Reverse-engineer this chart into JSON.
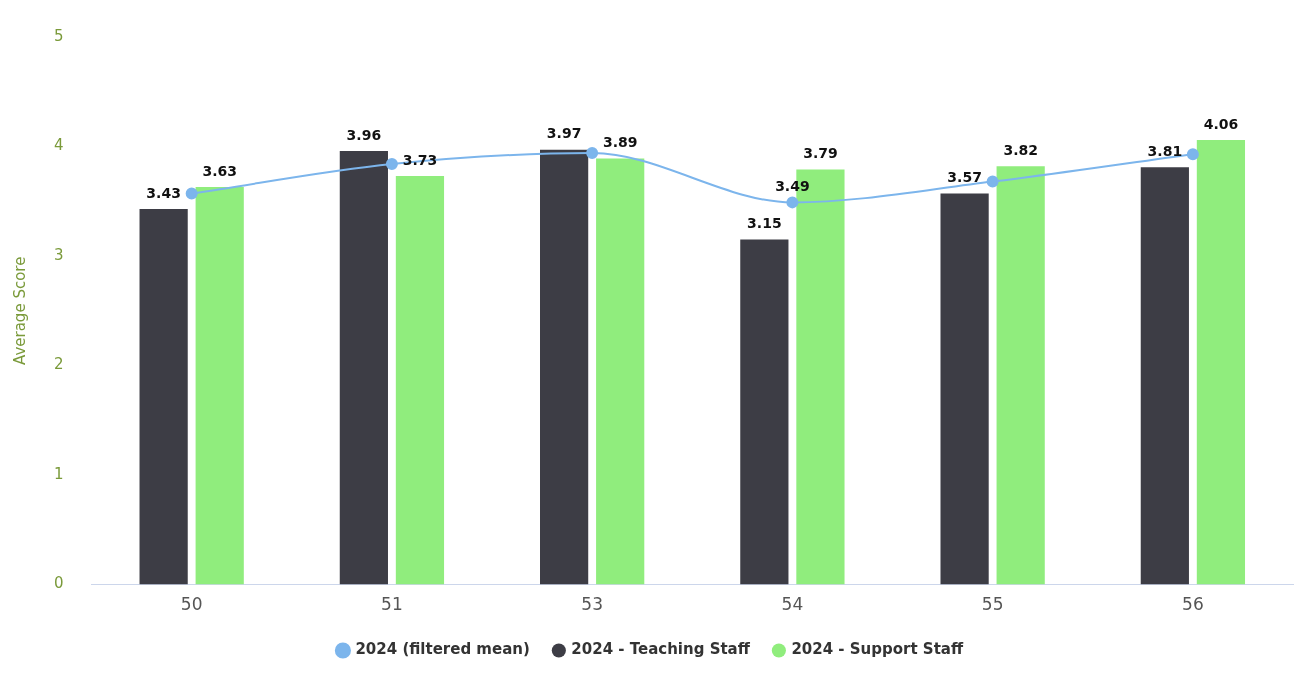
{
  "chart_data": {
    "type": "bar",
    "ylabel": "Average Score",
    "categories": [
      "50",
      "51",
      "53",
      "54",
      "55",
      "56"
    ],
    "ylim": [
      0,
      5
    ],
    "yticks": [
      0,
      1,
      2,
      3,
      4,
      5
    ],
    "grid": false,
    "legend": "bottom",
    "series": [
      {
        "name": "2024 (filtered mean)",
        "type": "line",
        "color": "#7cb5ec",
        "marker": "circle",
        "values": [
          3.57,
          3.84,
          3.94,
          3.49,
          3.68,
          3.93
        ],
        "value_labels": [
          null,
          null,
          null,
          "3.49",
          null,
          null
        ]
      },
      {
        "name": "2024 - Teaching Staff",
        "color": "#3d3d45",
        "values": [
          3.43,
          3.96,
          3.97,
          3.15,
          3.57,
          3.81
        ],
        "value_labels": [
          "3.43",
          "3.96",
          "3.97",
          "3.15",
          "3.57",
          "3.81"
        ]
      },
      {
        "name": "2024 - Support Staff",
        "color": "#90ed7d",
        "values": [
          3.63,
          3.73,
          3.89,
          3.79,
          3.82,
          4.06
        ],
        "value_labels": [
          "3.63",
          "3.73",
          "3.89",
          "3.79",
          "3.82",
          "4.06"
        ]
      }
    ]
  }
}
